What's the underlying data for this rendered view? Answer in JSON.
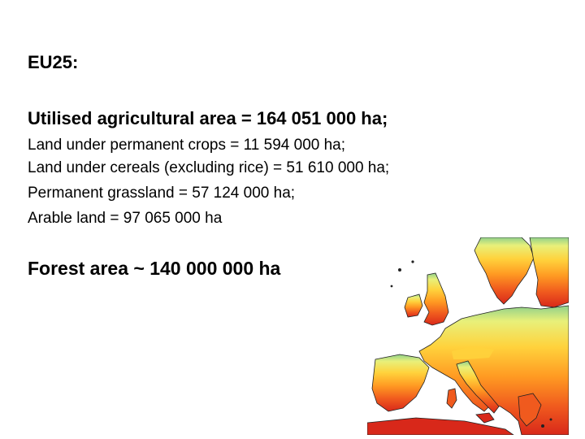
{
  "slide": {
    "heading": "EU25:",
    "utilised_area": "Utilised agricultural area = 164 051 000 ha;",
    "items": [
      "Land under permanent crops = 11 594 000 ha;",
      "Land under cereals (excluding rice) = 51 610 000 ha;",
      "Permanent grassland = 57 124 000 ha;",
      "Arable land = 97 065 000 ha"
    ],
    "forest_area": "Forest area ~ 140 000 000 ha"
  },
  "map": {
    "icon": "europe-heat-map",
    "colors": {
      "sea": "#ffffff",
      "north": "#8fd08a",
      "cool": "#e8f07a",
      "mild": "#ffd23c",
      "warm": "#ff9a22",
      "hot": "#f05a1e",
      "hottest": "#d8281a",
      "outline": "#222222"
    }
  }
}
